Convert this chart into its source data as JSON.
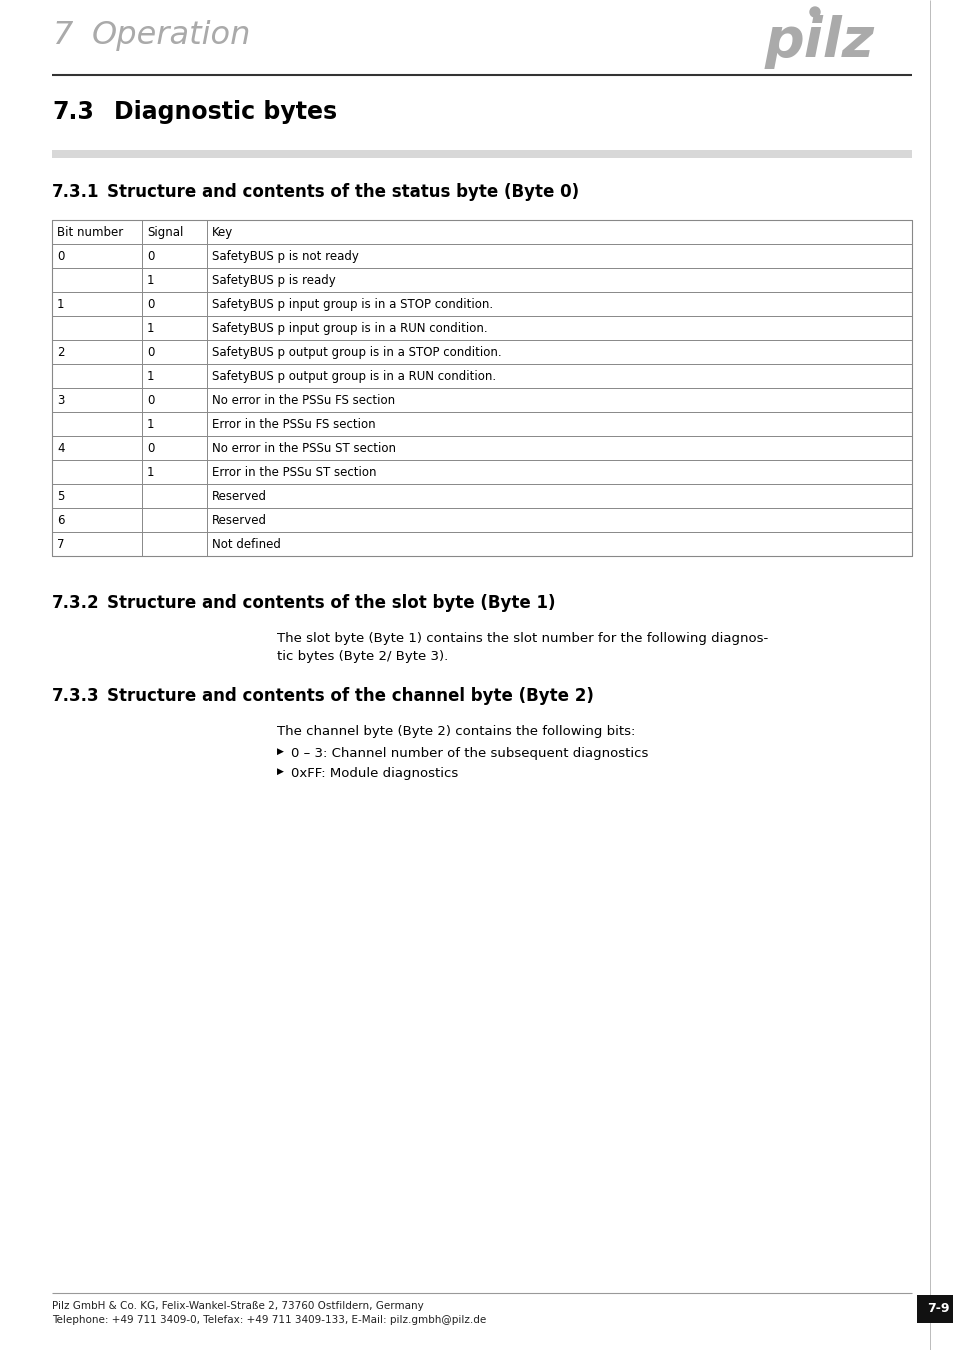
{
  "page_bg": "#ffffff",
  "header_number": "7",
  "header_title": "Operation",
  "logo_color": "#aaaaaa",
  "section_33_number": "7.3",
  "section_33_title": "Diagnostic bytes",
  "section_331_number": "7.3.1",
  "section_331_title": "Structure and contents of the status byte (Byte 0)",
  "section_332_number": "7.3.2",
  "section_332_title": "Structure and contents of the slot byte (Byte 1)",
  "section_333_number": "7.3.3",
  "section_333_title": "Structure and contents of the channel byte (Byte 2)",
  "table_headers": [
    "Bit number",
    "Signal",
    "Key"
  ],
  "table_rows": [
    [
      "0",
      "0",
      "SafetyBUS p is not ready"
    ],
    [
      "",
      "1",
      "SafetyBUS p is ready"
    ],
    [
      "1",
      "0",
      "SafetyBUS p input group is in a STOP condition."
    ],
    [
      "",
      "1",
      "SafetyBUS p input group is in a RUN condition."
    ],
    [
      "2",
      "0",
      "SafetyBUS p output group is in a STOP condition."
    ],
    [
      "",
      "1",
      "SafetyBUS p output group is in a RUN condition."
    ],
    [
      "3",
      "0",
      "No error in the PSSu FS section"
    ],
    [
      "",
      "1",
      "Error in the PSSu FS section"
    ],
    [
      "4",
      "0",
      "No error in the PSSu ST section"
    ],
    [
      "",
      "1",
      "Error in the PSSu ST section"
    ],
    [
      "5",
      "",
      "Reserved"
    ],
    [
      "6",
      "",
      "Reserved"
    ],
    [
      "7",
      "",
      "Not defined"
    ]
  ],
  "slot_byte_line1": "The slot byte (Byte 1) contains the slot number for the following diagnos-",
  "slot_byte_line2": "tic bytes (Byte 2/ Byte 3).",
  "channel_byte_intro": "The channel byte (Byte 2) contains the following bits:",
  "channel_byte_bullets": [
    "0 – 3: Channel number of the subsequent diagnostics",
    "0xFF: Module diagnostics"
  ],
  "footer_line1": "Pilz GmbH & Co. KG, Felix-Wankel-Straße 2, 73760 Ostfildern, Germany",
  "footer_line2": "Telephone: +49 711 3409-0, Telefax: +49 711 3409-133, E-Mail: pilz.gmbh@pilz.de",
  "page_number": "7-9",
  "text_color": "#000000",
  "table_border_color": "#888888",
  "footer_color": "#222222",
  "gray_bar_color": "#d8d8d8",
  "right_border_color": "#bbbbbb"
}
